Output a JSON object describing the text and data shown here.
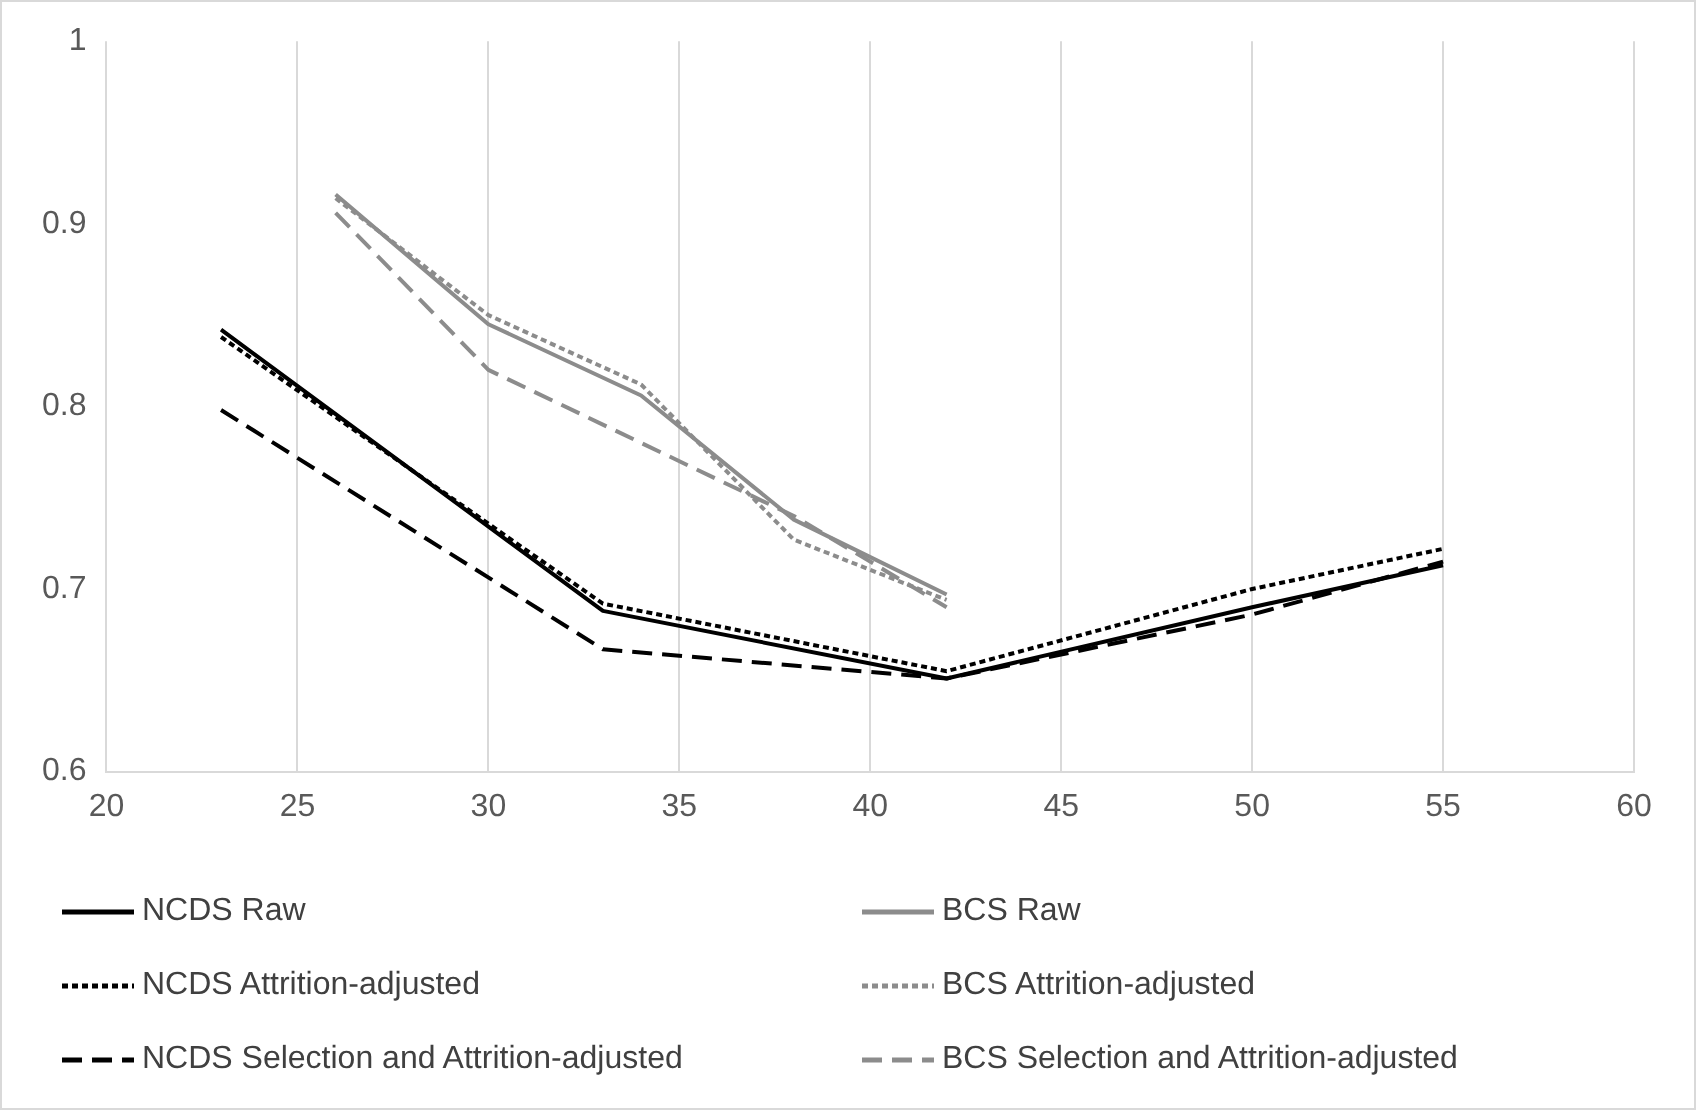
{
  "chart_data": {
    "type": "line",
    "xlim": [
      20,
      60
    ],
    "xticks": [
      20,
      25,
      30,
      35,
      40,
      45,
      50,
      55,
      60
    ],
    "ylim": [
      0.6,
      1
    ],
    "yticks": [
      0.6,
      0.7,
      0.8,
      0.9,
      1
    ],
    "grid": "x",
    "legend": "bottom",
    "marker": "none",
    "series": [
      {
        "name": "NCDS Raw",
        "color": "#000000",
        "line_style": "solid",
        "x": [
          23,
          33,
          42,
          50,
          55
        ],
        "values": [
          0.842,
          0.688,
          0.651,
          0.69,
          0.713
        ]
      },
      {
        "name": "BCS Raw",
        "color": "#8c8c8c",
        "line_style": "solid",
        "x": [
          26,
          30,
          34,
          38,
          42
        ],
        "values": [
          0.916,
          0.845,
          0.806,
          0.738,
          0.697
        ]
      },
      {
        "name": "NCDS Attrition-adjusted",
        "color": "#000000",
        "line_style": "dotted",
        "x": [
          23,
          33,
          42,
          50,
          55
        ],
        "values": [
          0.838,
          0.692,
          0.655,
          0.7,
          0.722
        ]
      },
      {
        "name": "BCS Attrition-adjusted",
        "color": "#8c8c8c",
        "line_style": "dotted",
        "x": [
          26,
          30,
          34,
          38,
          42
        ],
        "values": [
          0.914,
          0.85,
          0.812,
          0.727,
          0.694
        ]
      },
      {
        "name": "NCDS Selection and Attrition-adjusted",
        "color": "#000000",
        "line_style": "dashed",
        "x": [
          23,
          33,
          42,
          50,
          55
        ],
        "values": [
          0.798,
          0.667,
          0.651,
          0.686,
          0.715
        ]
      },
      {
        "name": "BCS Selection and Attrition-adjusted",
        "color": "#8c8c8c",
        "line_style": "dashed",
        "x": [
          26,
          30,
          34,
          38,
          42
        ],
        "values": [
          0.906,
          0.82,
          0.78,
          0.74,
          0.69
        ]
      }
    ]
  }
}
